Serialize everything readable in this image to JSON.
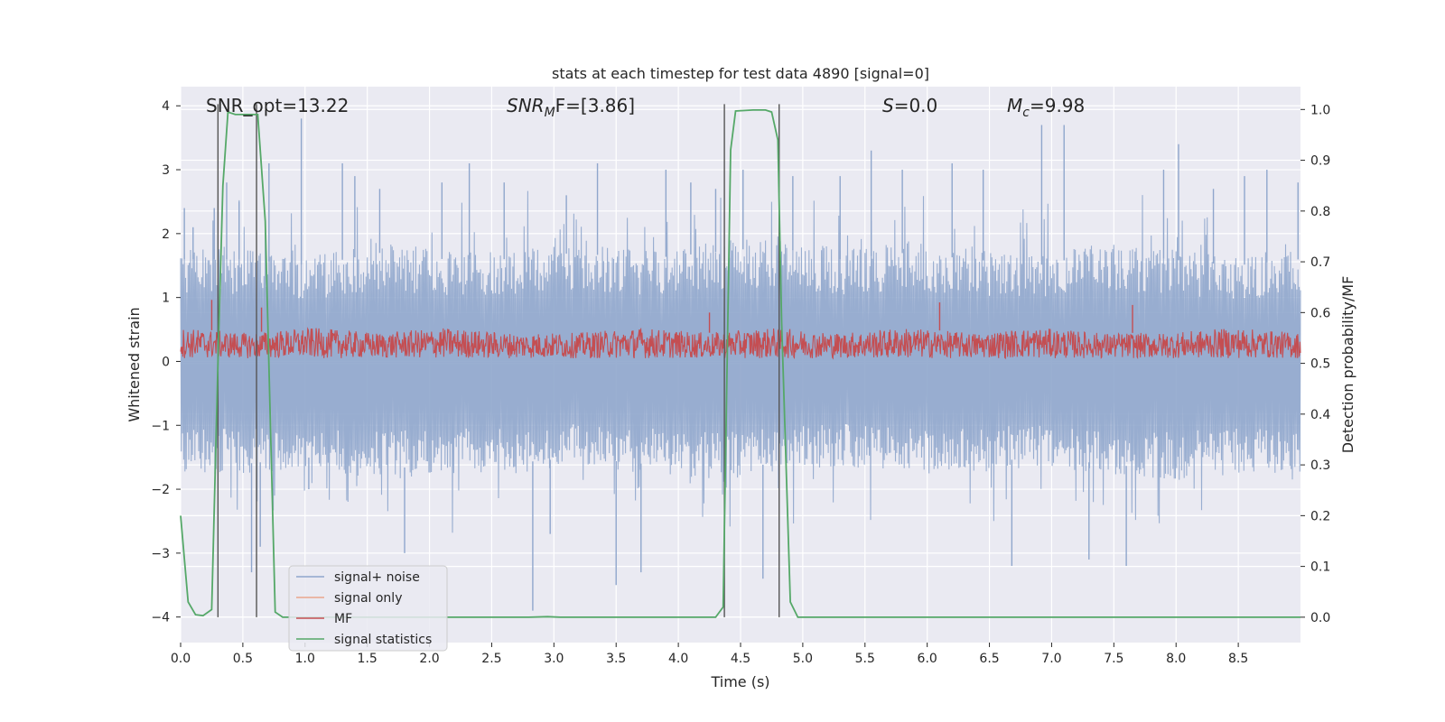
{
  "chart_data": {
    "type": "line",
    "title": "stats at each timestep for test data 4890 [signal=0]",
    "xlabel": "Time (s)",
    "ylabel": "Whitened strain",
    "y2label": "Detection probability/MF",
    "xlim": [
      0,
      9.0
    ],
    "ylim": [
      -4.4,
      4.3
    ],
    "y2lim": [
      -0.05,
      1.045
    ],
    "x_ticks": [
      0.0,
      0.5,
      1.0,
      1.5,
      2.0,
      2.5,
      3.0,
      3.5,
      4.0,
      4.5,
      5.0,
      5.5,
      6.0,
      6.5,
      7.0,
      7.5,
      8.0,
      8.5
    ],
    "x_tick_labels": [
      "0.0",
      "0.5",
      "1.0",
      "1.5",
      "2.0",
      "2.5",
      "3.0",
      "3.5",
      "4.0",
      "4.5",
      "5.0",
      "5.5",
      "6.0",
      "6.5",
      "7.0",
      "7.5",
      "8.0",
      "8.5"
    ],
    "y_ticks": [
      4,
      3,
      2,
      1,
      0,
      -1,
      -2,
      -3,
      -4
    ],
    "y_tick_labels": [
      "4",
      "3",
      "2",
      "1",
      "0",
      "−1",
      "−2",
      "−3",
      "−4"
    ],
    "y2_ticks": [
      1.0,
      0.9,
      0.8,
      0.7,
      0.6,
      0.5,
      0.4,
      0.3,
      0.2,
      0.1,
      0.0
    ],
    "y2_tick_labels": [
      "1.0",
      "0.9",
      "0.8",
      "0.7",
      "0.6",
      "0.5",
      "0.4",
      "0.3",
      "0.2",
      "0.1",
      "0.0"
    ],
    "grid": true,
    "legend_position": "lower-left",
    "annotations": {
      "snr_opt": "SNR_opt=13.22",
      "snr_mf_sym": "SNR",
      "snr_mf_sub": "M",
      "snr_mf_rest": "F=[3.86]",
      "s_sym": "S",
      "s_rest": "=0.0",
      "mc_sym": "M",
      "mc_sub": "c",
      "mc_rest": "=9.98"
    },
    "series": [
      {
        "name": "signal+ noise",
        "color": "#8fa6cc",
        "axis": "left",
        "style": "dense noise",
        "band_upper": [
          1.6,
          1.6,
          1.5,
          1.7,
          1.6,
          1.6,
          1.7,
          1.6,
          1.7,
          1.8,
          1.6,
          1.7,
          1.6,
          1.5,
          1.7,
          1.6,
          1.5,
          1.6
        ],
        "band_lower": [
          -1.6,
          -1.6,
          -1.5,
          -1.7,
          -1.6,
          -1.6,
          -1.5,
          -1.6,
          -1.7,
          -1.6,
          -1.5,
          -1.6,
          -1.6,
          -1.5,
          -1.6,
          -1.7,
          -1.6,
          -1.6
        ],
        "peaks": [
          [
            0.03,
            2.4
          ],
          [
            0.1,
            2.1
          ],
          [
            0.27,
            2.4
          ],
          [
            0.37,
            2.8
          ],
          [
            0.47,
            2.5
          ],
          [
            0.57,
            -3.3
          ],
          [
            0.64,
            -2.9
          ],
          [
            0.71,
            3.1
          ],
          [
            0.97,
            3.8
          ],
          [
            1.03,
            -2.0
          ],
          [
            1.3,
            3.1
          ],
          [
            1.4,
            2.9
          ],
          [
            1.6,
            2.7
          ],
          [
            1.8,
            -3.0
          ],
          [
            2.1,
            2.8
          ],
          [
            2.32,
            3.1
          ],
          [
            2.6,
            2.8
          ],
          [
            2.83,
            -3.9
          ],
          [
            2.97,
            -2.7
          ],
          [
            3.1,
            2.6
          ],
          [
            3.35,
            3.1
          ],
          [
            3.5,
            -3.5
          ],
          [
            3.7,
            -3.3
          ],
          [
            3.9,
            3.0
          ],
          [
            4.1,
            2.8
          ],
          [
            4.3,
            2.7
          ],
          [
            4.52,
            3.0
          ],
          [
            4.68,
            -3.4
          ],
          [
            4.92,
            2.9
          ],
          [
            5.3,
            2.9
          ],
          [
            5.55,
            3.3
          ],
          [
            5.8,
            3.0
          ],
          [
            6.2,
            3.1
          ],
          [
            6.45,
            3.0
          ],
          [
            6.68,
            -3.2
          ],
          [
            6.92,
            3.7
          ],
          [
            7.1,
            3.7
          ],
          [
            7.3,
            -3.1
          ],
          [
            7.6,
            -3.2
          ],
          [
            7.9,
            3.0
          ],
          [
            8.02,
            3.4
          ],
          [
            8.3,
            2.7
          ],
          [
            8.55,
            2.9
          ],
          [
            8.73,
            3.0
          ],
          [
            8.98,
            2.8
          ]
        ]
      },
      {
        "name": "signal only",
        "color": "#e9a68c",
        "axis": "left",
        "values": []
      },
      {
        "name": "MF",
        "color": "#c44e52",
        "axis": "right",
        "style": "dense noise",
        "band_upper": [
          0.57,
          0.56,
          0.57,
          0.56,
          0.57,
          0.56,
          0.56,
          0.57,
          0.56,
          0.57,
          0.56,
          0.57,
          0.56,
          0.57,
          0.56,
          0.56,
          0.57,
          0.56
        ],
        "band_lower": [
          0.51,
          0.51,
          0.51,
          0.51,
          0.51,
          0.51,
          0.51,
          0.51,
          0.51,
          0.51,
          0.51,
          0.51,
          0.51,
          0.51,
          0.51,
          0.51,
          0.51,
          0.51
        ],
        "peaks": [
          [
            0.25,
            0.625
          ],
          [
            0.65,
            0.61
          ],
          [
            4.25,
            0.6
          ],
          [
            6.1,
            0.62
          ],
          [
            7.65,
            0.615
          ]
        ]
      },
      {
        "name": "signal statistics",
        "color": "#55a868",
        "axis": "right",
        "x": [
          0.0,
          0.06,
          0.12,
          0.18,
          0.25,
          0.3,
          0.34,
          0.38,
          0.44,
          0.55,
          0.62,
          0.68,
          0.76,
          0.82,
          1.0,
          2.0,
          2.8,
          2.95,
          3.05,
          3.5,
          4.0,
          4.3,
          4.36,
          4.42,
          4.46,
          4.6,
          4.7,
          4.75,
          4.8,
          4.83,
          4.9,
          4.96,
          5.05,
          6.0,
          7.0,
          8.0,
          9.0
        ],
        "y": [
          0.2,
          0.03,
          0.005,
          0.003,
          0.015,
          0.5,
          0.85,
          0.995,
          0.99,
          0.99,
          0.99,
          0.78,
          0.01,
          0.0,
          0.0,
          0.0,
          0.0,
          0.001,
          0.0,
          0.0,
          0.0,
          0.0,
          0.02,
          0.92,
          0.997,
          0.999,
          0.999,
          0.995,
          0.94,
          0.58,
          0.03,
          0.0,
          0.0,
          0.0,
          0.0,
          0.0,
          0.0
        ]
      }
    ],
    "vertical_markers": {
      "color": "#555555",
      "x": [
        0.3,
        0.61,
        4.37,
        4.81
      ]
    }
  }
}
